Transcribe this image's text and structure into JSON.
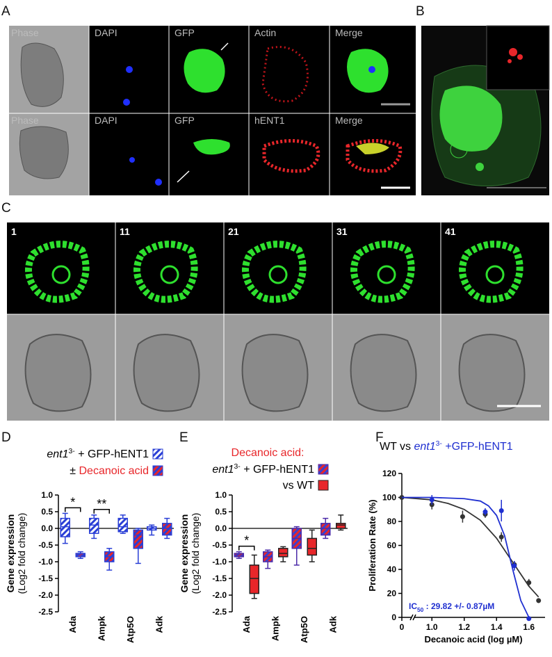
{
  "figure": {
    "panel_labels": [
      "A",
      "B",
      "C",
      "D",
      "E",
      "F"
    ],
    "a_labels": [
      [
        "Phase",
        "DAPI",
        "GFP",
        "Actin",
        "Merge"
      ],
      [
        "Phase",
        "DAPI",
        "GFP",
        "hENT1",
        "Merge"
      ]
    ],
    "c_frames": [
      "1",
      "11",
      "21",
      "31",
      "41"
    ]
  },
  "chart_data": [
    {
      "type": "box",
      "legend": [
        {
          "parts": [
            {
              "text": "ent1",
              "style": "italic"
            },
            {
              "text": "3-",
              "style": "sup"
            },
            {
              "text": " + GFP-hENT1"
            }
          ]
        },
        {
          "parts": [
            {
              "text": "± "
            },
            {
              "text": "Decanoic acid",
              "color": "#e8262a"
            }
          ]
        }
      ],
      "ylabel": "Gene expression",
      "ylabel2": "(Log2 fold change)",
      "categories": [
        "Ada",
        "Ampk",
        "Atp5O",
        "Adk"
      ],
      "series": [
        {
          "color": "#2a3fd6",
          "hatch": "#ffffff",
          "edgecolor": "#2a3fd6",
          "values": [
            [
              -0.45,
              -0.25,
              0.05,
              0.3,
              0.45
            ],
            [
              -0.3,
              -0.15,
              0.1,
              0.3,
              0.4
            ],
            [
              -0.15,
              -0.1,
              0.05,
              0.3,
              0.4
            ],
            [
              -0.2,
              -0.05,
              0.0,
              0.05,
              0.1
            ]
          ]
        },
        {
          "color": "#2a3fd6",
          "hatch": "#e8262a",
          "edgecolor": "#2a3fd6",
          "values": [
            [
              -0.9,
              -0.85,
              -0.8,
              -0.75,
              -0.7
            ],
            [
              -1.25,
              -1.0,
              -0.85,
              -0.7,
              -0.6
            ],
            [
              -1.05,
              -0.6,
              -0.2,
              -0.05,
              0.0
            ],
            [
              -0.3,
              -0.2,
              0.0,
              0.15,
              0.3
            ]
          ]
        }
      ],
      "ylim": [
        -2.5,
        1.0
      ],
      "yticks": [
        {
          "value": 1.0,
          "label": "1.0"
        },
        0.5,
        {
          "value": 0.0,
          "label": "0.0"
        },
        -0.5,
        {
          "value": -1.0,
          "label": "-1.0"
        },
        -1.5,
        {
          "value": -2.0,
          "label": "-2.0"
        },
        -2.5
      ],
      "significance": [
        {
          "category": "Ada",
          "label": "*"
        },
        {
          "category": "Ampk",
          "label": "**"
        }
      ]
    },
    {
      "type": "box",
      "title": "Decanoic acid:",
      "title_color": "#e8262a",
      "legend": [
        {
          "parts": [
            {
              "text": "ent1",
              "style": "italic"
            },
            {
              "text": "3-",
              "style": "sup"
            },
            {
              "text": " + GFP-hENT1"
            }
          ]
        },
        {
          "parts": [
            {
              "text": "vs WT"
            }
          ]
        }
      ],
      "ylabel": "Gene expression",
      "ylabel2": "(Log2 fold change)",
      "categories": [
        "Ada",
        "Ampk",
        "Atp5O",
        "Adk"
      ],
      "series": [
        {
          "color": "#3a3fd0",
          "hatch": "#e8262a",
          "edgecolor": "#4b2aa8",
          "values": [
            [
              -0.9,
              -0.85,
              -0.8,
              -0.75,
              -0.7
            ],
            [
              -1.2,
              -1.0,
              -0.85,
              -0.7,
              -0.65
            ],
            [
              -1.1,
              -0.6,
              -0.3,
              0.0,
              0.05
            ],
            [
              -0.3,
              -0.2,
              0.0,
              0.15,
              0.3
            ]
          ]
        },
        {
          "color": "#e8262a",
          "edgecolor": "#222222",
          "values": [
            [
              -2.1,
              -1.95,
              -1.5,
              -1.1,
              -0.8
            ],
            [
              -1.0,
              -0.85,
              -0.75,
              -0.6,
              -0.55
            ],
            [
              -1.0,
              -0.8,
              -0.6,
              -0.3,
              -0.05
            ],
            [
              -0.05,
              0.0,
              0.1,
              0.15,
              0.4
            ]
          ]
        }
      ],
      "ylim": [
        -2.5,
        1.0
      ],
      "yticks": [
        {
          "value": 1.0,
          "label": "1.0"
        },
        0.5,
        {
          "value": 0.0,
          "label": "0.0"
        },
        -0.5,
        {
          "value": -1.0,
          "label": "-1.0"
        },
        -1.5,
        {
          "value": -2.0,
          "label": "-2.0"
        },
        -2.5
      ],
      "significance": [
        {
          "category": "Ada",
          "label": "*"
        }
      ]
    },
    {
      "type": "scatter",
      "title": [
        {
          "text": "WT vs "
        },
        {
          "text": "ent1",
          "style": "italic",
          "color": "#1f2fd0"
        },
        {
          "text": "3-",
          "style": "sup",
          "color": "#1f2fd0"
        },
        {
          "text": " +GFP-hENT1",
          "color": "#1f2fd0"
        }
      ],
      "xlabel": "Decanoic acid (log µM)",
      "ylabel": "Proliferation Rate (%)",
      "xlim": [
        0,
        1.7
      ],
      "x_break": [
        0.1,
        0.9
      ],
      "xticks": [
        0,
        {
          "value": 1.0,
          "label": "1.0"
        },
        1.2,
        1.4,
        1.6
      ],
      "ylim": [
        0,
        120
      ],
      "yticks": [
        0,
        20,
        40,
        60,
        80,
        100,
        120
      ],
      "series": [
        {
          "color": "#333333",
          "x": [
            0,
            1.0,
            1.19,
            1.33,
            1.43,
            1.51,
            1.6,
            1.66
          ],
          "values": [
            100,
            94,
            84,
            86,
            67,
            44,
            29,
            14
          ],
          "errors": [
            null,
            4,
            5,
            3,
            4,
            3,
            3,
            2
          ],
          "fit_x": [
            0,
            1.0,
            1.1,
            1.2,
            1.3,
            1.4,
            1.5,
            1.6,
            1.66
          ],
          "fit_values": [
            100,
            98,
            95,
            90,
            81,
            66,
            46,
            26,
            17
          ]
        },
        {
          "color": "#1f2fd0",
          "x": [
            1.0,
            1.33,
            1.43,
            1.51,
            1.6
          ],
          "values": [
            98,
            88,
            89,
            43,
            -1
          ],
          "errors": [
            4,
            3,
            9,
            4,
            null
          ],
          "fit_x": [
            0,
            1.0,
            1.2,
            1.3,
            1.35,
            1.4,
            1.45,
            1.5,
            1.55,
            1.6
          ],
          "fit_values": [
            100,
            100,
            99,
            97,
            93,
            85,
            68,
            40,
            14,
            0
          ]
        }
      ],
      "annotation": [
        {
          "text": "IC"
        },
        {
          "text": "50",
          "style": "sub"
        },
        {
          "text": " : 29.82 +/- 0.87µM"
        }
      ],
      "annotation_color": "#1f2fd0"
    }
  ]
}
